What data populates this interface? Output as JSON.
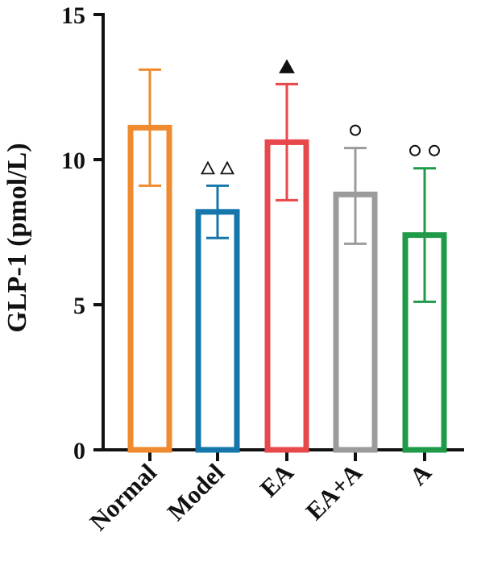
{
  "chart_data": {
    "type": "bar",
    "title": "",
    "xlabel": "",
    "ylabel": "GLP-1 (pmol/L)",
    "ylim": [
      0,
      15
    ],
    "yticks": [
      0,
      5,
      10,
      15
    ],
    "grid": false,
    "legend": "none",
    "categories": [
      "Normal",
      "Model",
      "EA",
      "EA+A",
      "A"
    ],
    "values": [
      11.1,
      8.2,
      10.6,
      8.8,
      7.4
    ],
    "error_low": [
      9.1,
      7.3,
      8.6,
      7.1,
      5.1
    ],
    "error_high": [
      13.1,
      9.1,
      12.6,
      10.4,
      9.7
    ],
    "colors": [
      "#F08A2E",
      "#1476AA",
      "#E8484B",
      "#9B9B9B",
      "#1E9A48"
    ],
    "annotations": [
      {
        "category": "Model",
        "symbols": [
          "open-triangle",
          "open-triangle"
        ]
      },
      {
        "category": "EA",
        "symbols": [
          "filled-triangle"
        ]
      },
      {
        "category": "EA+A",
        "symbols": [
          "open-circle"
        ]
      },
      {
        "category": "A",
        "symbols": [
          "open-circle",
          "open-circle"
        ]
      }
    ]
  }
}
